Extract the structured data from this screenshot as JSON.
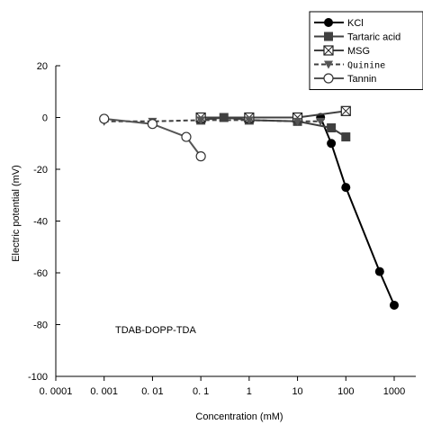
{
  "chart_data": {
    "type": "line",
    "xlabel": "Concentration (mM)",
    "ylabel": "Electric potential (mV)",
    "xscale": "log",
    "xlim": [
      0.0001,
      1000
    ],
    "ylim": [
      -100,
      20
    ],
    "xticks": [
      0.0001,
      0.001,
      0.01,
      0.1,
      1,
      10,
      100,
      1000
    ],
    "xtick_labels": [
      "0. 0001",
      "0. 001",
      "0. 01",
      "0. 1",
      "1",
      "10",
      "100",
      "1000"
    ],
    "yticks": [
      20,
      0,
      -20,
      -40,
      -60,
      -80,
      -100
    ],
    "ytick_labels": [
      "20",
      "0",
      "-20",
      "-40",
      "-60",
      "-80",
      "-100"
    ],
    "annotation": "TDAB-DOPP-TDA",
    "legend_position": "top-right",
    "grid": false,
    "series": [
      {
        "name": "KCl",
        "marker": "filled-circle",
        "line": "solid",
        "color": "#000000",
        "x": [
          30,
          50,
          100,
          500,
          1000
        ],
        "y": [
          0,
          -10,
          -27,
          -59.5,
          -72.5
        ]
      },
      {
        "name": "Tartaric acid",
        "marker": "filled-square",
        "line": "solid",
        "color": "#404040",
        "x": [
          0.1,
          0.3,
          1,
          10,
          50,
          100
        ],
        "y": [
          -1,
          0,
          -1,
          -1.5,
          -4,
          -7.5
        ]
      },
      {
        "name": "MSG",
        "marker": "crossed-square",
        "line": "solid",
        "color": "#404040",
        "x": [
          0.1,
          1,
          10,
          100
        ],
        "y": [
          0,
          0,
          0,
          2.5
        ]
      },
      {
        "name": "Quinine",
        "marker": "down-triangle",
        "line": "dashed",
        "color": "#404040",
        "x": [
          0.001,
          0.01,
          0.1,
          1,
          10,
          30
        ],
        "y": [
          -1.5,
          -1.5,
          -1,
          -1,
          -1.5,
          -1.5
        ]
      },
      {
        "name": "Tannin",
        "marker": "open-circle",
        "line": "solid",
        "color": "#555555",
        "x": [
          0.001,
          0.01,
          0.05,
          0.1
        ],
        "y": [
          -0.5,
          -2.5,
          -7.5,
          -15
        ]
      }
    ]
  }
}
